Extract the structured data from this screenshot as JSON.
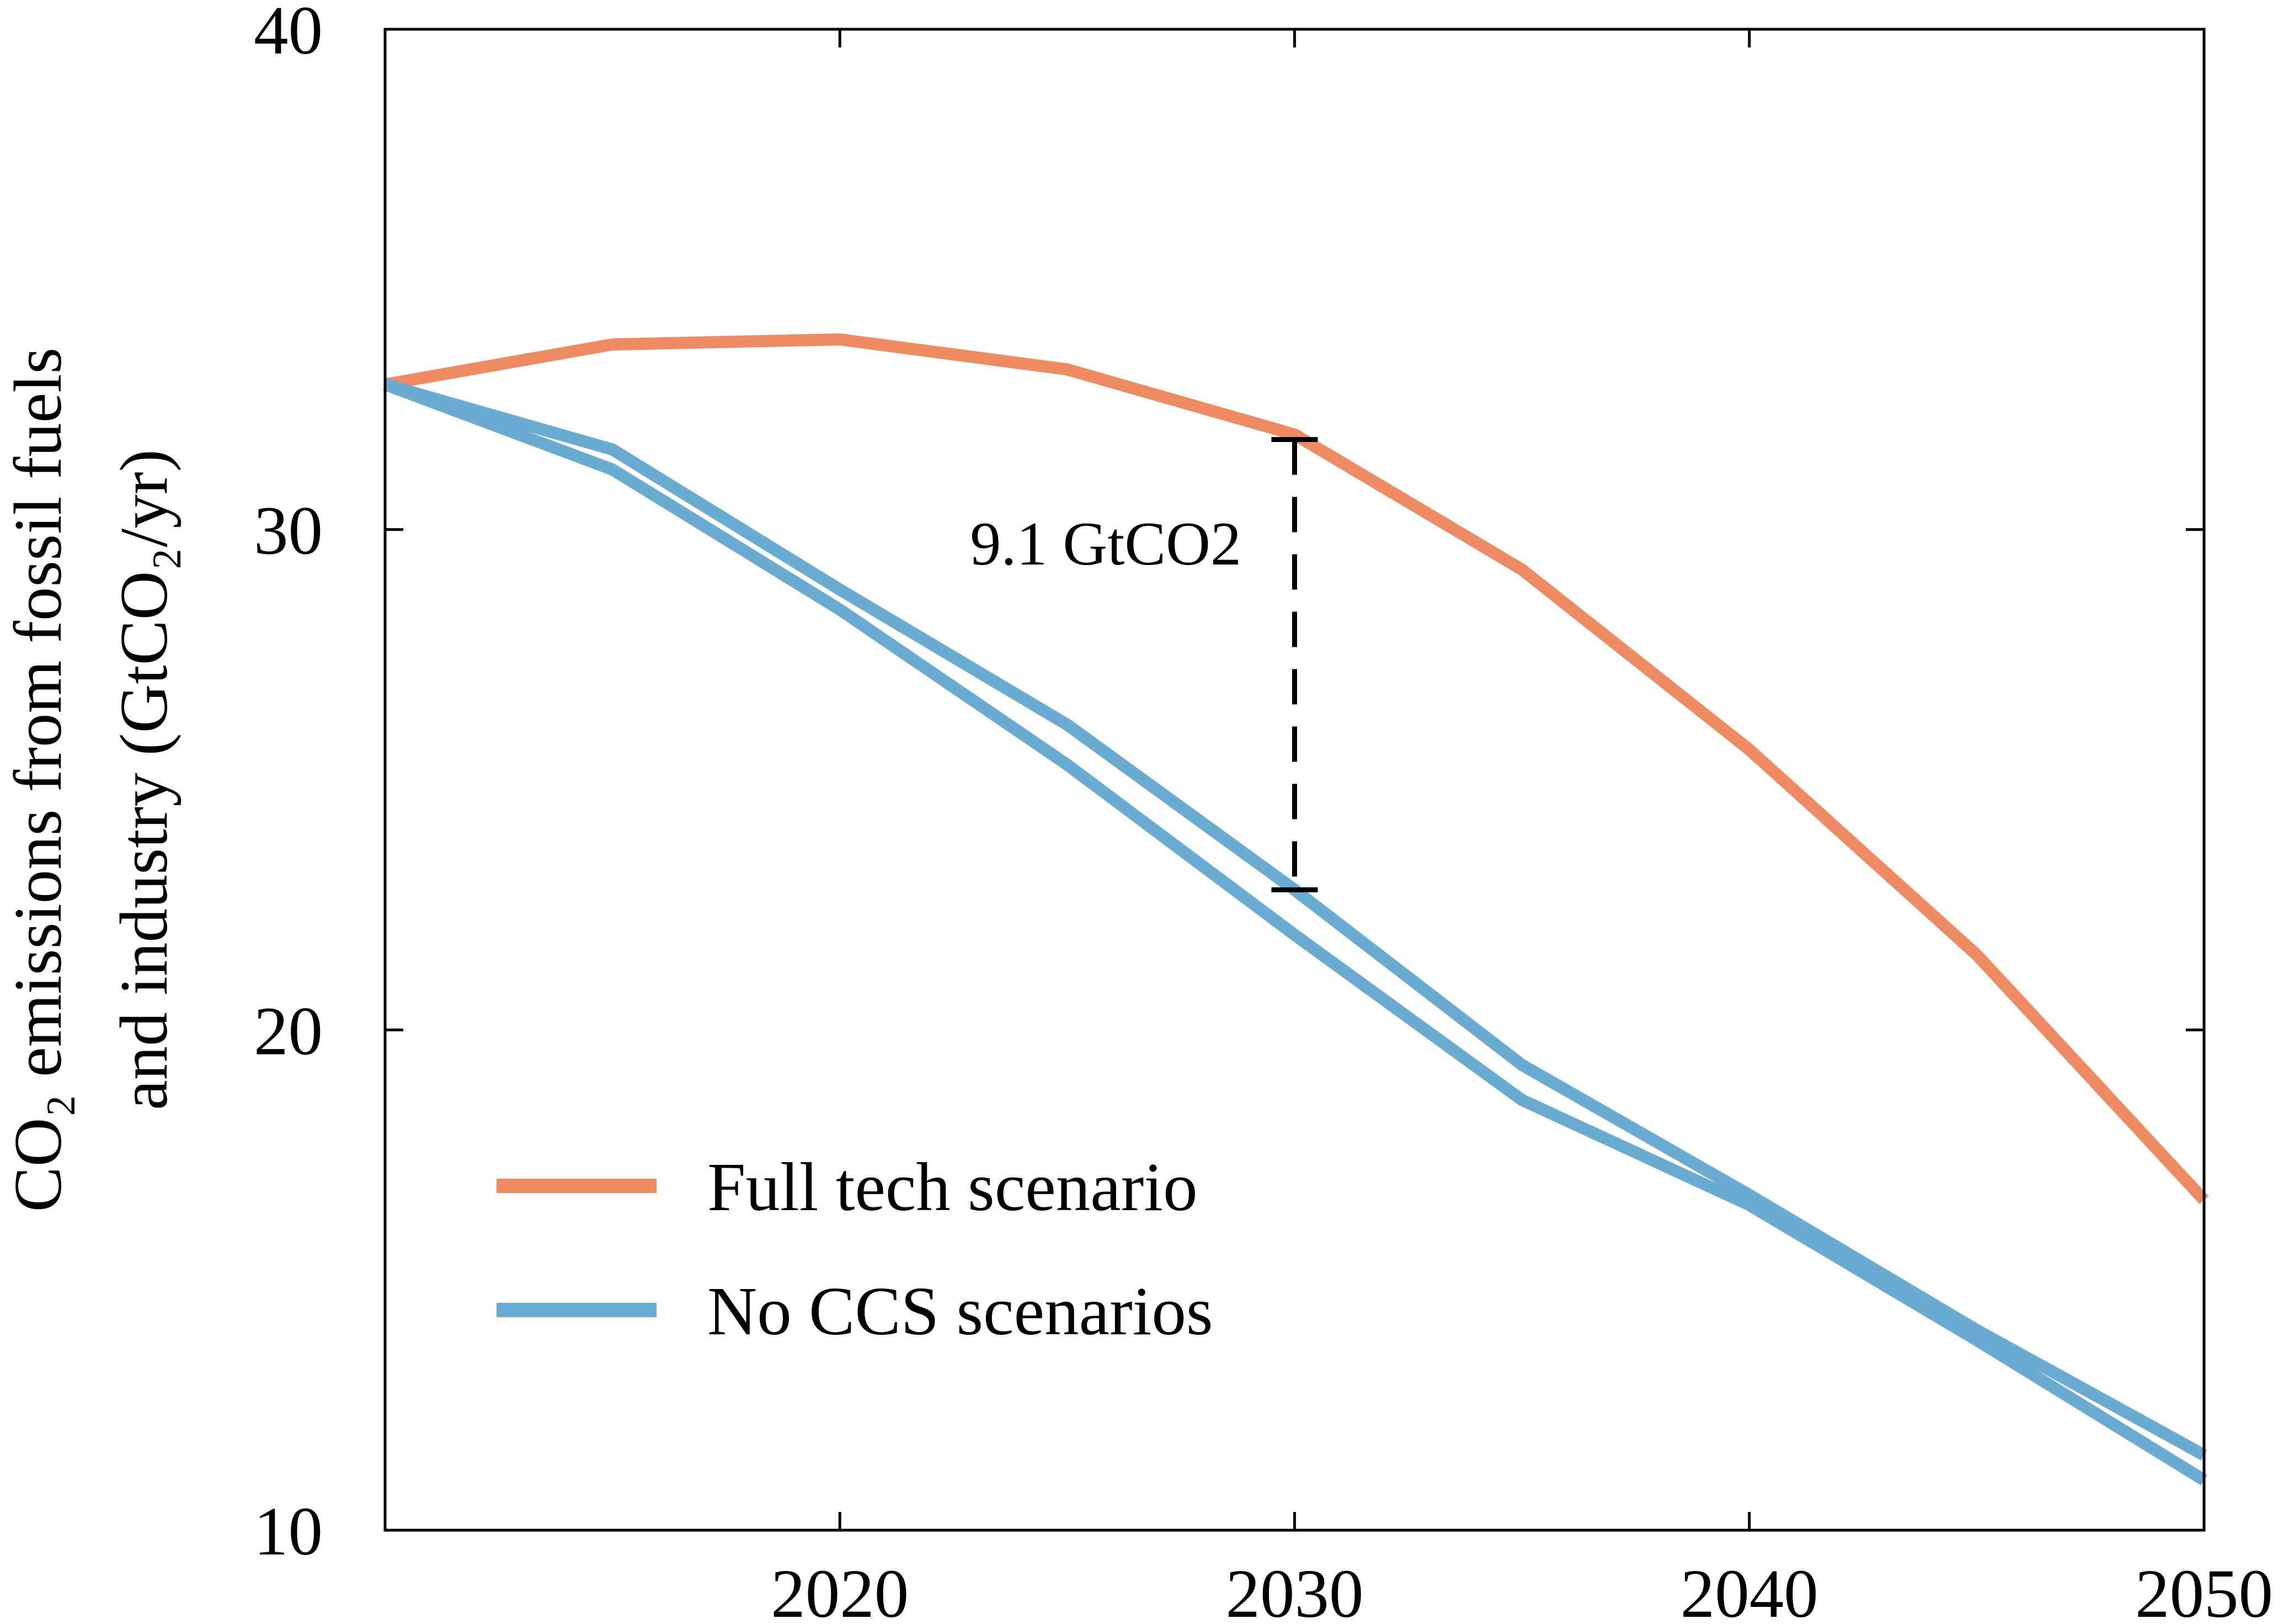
{
  "chart_data": {
    "type": "line",
    "title": "",
    "ylabel_lines": [
      "CO₂ emissions from fossil fuels",
      "and industry (GtCO₂/yr)"
    ],
    "xlabel": "",
    "xlim": [
      2010,
      2050
    ],
    "ylim": [
      10,
      40
    ],
    "x_ticks": [
      2020,
      2030,
      2040,
      2050
    ],
    "y_ticks": [
      10,
      20,
      30,
      40
    ],
    "grid": false,
    "legend_position": "lower-left",
    "x": [
      2010,
      2015,
      2020,
      2025,
      2030,
      2035,
      2040,
      2045,
      2050
    ],
    "series": [
      {
        "name": "Full tech scenario",
        "group": "full",
        "color": "#EE8B62",
        "values": [
          32.9,
          33.7,
          33.8,
          33.2,
          31.9,
          29.2,
          25.6,
          21.5,
          16.6
        ]
      },
      {
        "name": "No CCS scenarios",
        "group": "noccs",
        "color": "#6AABD2",
        "values": [
          32.9,
          31.6,
          28.8,
          26.1,
          22.8,
          19.3,
          16.7,
          14.0,
          11.5
        ]
      },
      {
        "name": "",
        "group": "noccs",
        "color": "#6AABD2",
        "values": [
          32.9,
          31.2,
          28.4,
          25.3,
          21.9,
          18.6,
          16.5,
          13.8,
          11.0
        ]
      }
    ],
    "legend": [
      {
        "label": "Full tech scenario",
        "color": "#EE8B62"
      },
      {
        "label": "No CCS scenarios",
        "color": "#6AABD2"
      }
    ],
    "annotation": {
      "text": "9.1 GtCO2",
      "x": 2030,
      "y_top": 31.8,
      "y_bottom": 22.8
    }
  }
}
